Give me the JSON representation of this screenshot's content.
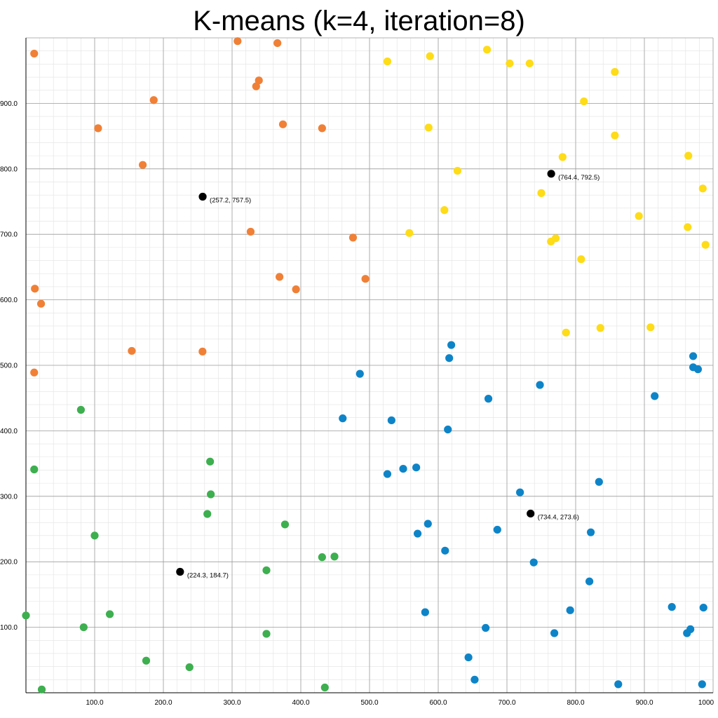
{
  "chart_data": {
    "type": "scatter",
    "title": "K-means (k=4, iteration=8)",
    "xlabel": "",
    "ylabel": "",
    "xlim": [
      0,
      1000
    ],
    "ylim": [
      0,
      1000
    ],
    "grid": true,
    "x_ticks": [
      "100.0",
      "200.0",
      "300.0",
      "400.0",
      "500.0",
      "600.0",
      "700.0",
      "800.0",
      "900.0",
      "1000"
    ],
    "y_ticks": [
      "100.0",
      "200.0",
      "300.0",
      "400.0",
      "500.0",
      "600.0",
      "700.0",
      "800.0",
      "900.0"
    ],
    "colors": {
      "orange": "#f08036",
      "yellow": "#fedc17",
      "blue": "#0e84c8",
      "green": "#3daf4f",
      "centroid": "#000000"
    },
    "series": [
      {
        "color_key": "orange",
        "points": [
          [
            12,
            976
          ],
          [
            308,
            995
          ],
          [
            366,
            992
          ],
          [
            186,
            905
          ],
          [
            339,
            935
          ],
          [
            335,
            926
          ],
          [
            105,
            862
          ],
          [
            374,
            868
          ],
          [
            431,
            862
          ],
          [
            170,
            806
          ],
          [
            327,
            704
          ],
          [
            476,
            695
          ],
          [
            13,
            617
          ],
          [
            22,
            594
          ],
          [
            369,
            635
          ],
          [
            393,
            616
          ],
          [
            494,
            632
          ],
          [
            154,
            522
          ],
          [
            257,
            521
          ],
          [
            12,
            489
          ]
        ]
      },
      {
        "color_key": "yellow",
        "points": [
          [
            526,
            964
          ],
          [
            588,
            972
          ],
          [
            671,
            982
          ],
          [
            704,
            961
          ],
          [
            733,
            961
          ],
          [
            857,
            948
          ],
          [
            812,
            903
          ],
          [
            586,
            863
          ],
          [
            857,
            851
          ],
          [
            964,
            820
          ],
          [
            781,
            818
          ],
          [
            628,
            797
          ],
          [
            985,
            770
          ],
          [
            750,
            763
          ],
          [
            609,
            737
          ],
          [
            892,
            728
          ],
          [
            963,
            711
          ],
          [
            558,
            702
          ],
          [
            771,
            694
          ],
          [
            764,
            689
          ],
          [
            989,
            684
          ],
          [
            808,
            662
          ],
          [
            909,
            558
          ],
          [
            836,
            557
          ],
          [
            786,
            550
          ]
        ]
      },
      {
        "color_key": "blue",
        "points": [
          [
            619,
            531
          ],
          [
            616,
            511
          ],
          [
            971,
            514
          ],
          [
            971,
            497
          ],
          [
            978,
            494
          ],
          [
            486,
            487
          ],
          [
            748,
            470
          ],
          [
            915,
            453
          ],
          [
            673,
            449
          ],
          [
            461,
            419
          ],
          [
            532,
            416
          ],
          [
            614,
            402
          ],
          [
            568,
            344
          ],
          [
            549,
            342
          ],
          [
            526,
            334
          ],
          [
            834,
            322
          ],
          [
            719,
            306
          ],
          [
            585,
            258
          ],
          [
            570,
            243
          ],
          [
            686,
            249
          ],
          [
            822,
            245
          ],
          [
            610,
            217
          ],
          [
            739,
            199
          ],
          [
            820,
            170
          ],
          [
            581,
            123
          ],
          [
            792,
            126
          ],
          [
            940,
            131
          ],
          [
            986,
            130
          ],
          [
            669,
            99
          ],
          [
            769,
            91
          ],
          [
            967,
            97
          ],
          [
            962,
            91
          ],
          [
            644,
            54
          ],
          [
            653,
            20
          ],
          [
            862,
            13
          ],
          [
            984,
            13
          ]
        ]
      },
      {
        "color_key": "green",
        "points": [
          [
            80,
            432
          ],
          [
            12,
            341
          ],
          [
            268,
            353
          ],
          [
            269,
            303
          ],
          [
            264,
            273
          ],
          [
            377,
            257
          ],
          [
            100,
            240
          ],
          [
            431,
            207
          ],
          [
            449,
            208
          ],
          [
            350,
            187
          ],
          [
            0,
            118
          ],
          [
            122,
            120
          ],
          [
            84,
            100
          ],
          [
            350,
            90
          ],
          [
            175,
            49
          ],
          [
            238,
            39
          ],
          [
            23,
            5
          ],
          [
            435,
            8
          ]
        ]
      }
    ],
    "centroids": [
      {
        "x": 257.2,
        "y": 757.5,
        "label": "(257.2, 757.5)"
      },
      {
        "x": 764.4,
        "y": 792.5,
        "label": "(764.4, 792.5)"
      },
      {
        "x": 734.4,
        "y": 273.6,
        "label": "(734.4, 273.6)"
      },
      {
        "x": 224.3,
        "y": 184.7,
        "label": "(224.3, 184.7)"
      }
    ]
  }
}
